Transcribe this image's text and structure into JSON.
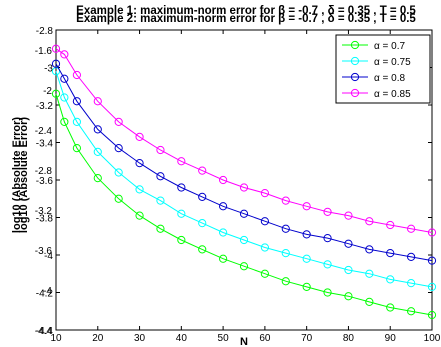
{
  "chart_data": {
    "type": "line",
    "title_a": "Example 1: maximum-norm error for β = -0.7 , δ = 0.35 , T = 0.5",
    "title_b": "Example 2: maximum-norm error for β = -0.7 , δ = 0.35 , T = 0.5",
    "xlabel": "N",
    "ylabel_a": "log10 (Absolute Error)",
    "ylabel_b": "log10 (Absolute Error)",
    "xlim": [
      10,
      100
    ],
    "ylim": [
      -4.4,
      -2.8
    ],
    "ylim_b": [
      -4.4,
      -1.4
    ],
    "xticks": [
      10,
      20,
      30,
      40,
      50,
      60,
      70,
      80,
      90,
      100
    ],
    "xtick_labels": [
      "10",
      "20",
      "30",
      "40",
      "50",
      "60",
      "70",
      "80",
      "90",
      "100"
    ],
    "yticks_a": [
      -4.4,
      -4.2,
      -4,
      -3.8,
      -3.6,
      -3.4,
      -3.2,
      -3,
      -2.8
    ],
    "ytick_labels_a": [
      "-4.4",
      "-4.2",
      "-4",
      "-3.8",
      "-3.6",
      "-3.4",
      "-3.2",
      "-3",
      "-2.8"
    ],
    "yticks_b": [
      -4.4,
      -4,
      -3.6,
      -3.2,
      -2.8,
      -2.4,
      -2,
      -1.6
    ],
    "ytick_labels_b": [
      "-4.4",
      "-4",
      "-3.6",
      "-3.2",
      "-2.8",
      "-2.4",
      "-2",
      "-1.6"
    ],
    "x": [
      10,
      12,
      15,
      20,
      25,
      30,
      35,
      40,
      45,
      50,
      55,
      60,
      65,
      70,
      75,
      80,
      85,
      90,
      95,
      100
    ],
    "series": [
      {
        "name": "α = 0.7",
        "color": "#00ff00",
        "values": [
          -3.14,
          -3.29,
          -3.43,
          -3.59,
          -3.7,
          -3.79,
          -3.86,
          -3.92,
          -3.97,
          -4.02,
          -4.06,
          -4.1,
          -4.14,
          -4.17,
          -4.2,
          -4.22,
          -4.25,
          -4.28,
          -4.3,
          -4.32
        ]
      },
      {
        "name": "α = 0.75",
        "color": "#00ffff",
        "values": [
          -3.02,
          -3.16,
          -3.29,
          -3.45,
          -3.56,
          -3.65,
          -3.71,
          -3.78,
          -3.83,
          -3.88,
          -3.92,
          -3.96,
          -3.99,
          -4.02,
          -4.05,
          -4.08,
          -4.1,
          -4.13,
          -4.15,
          -4.17
        ]
      },
      {
        "name": "α = 0.8",
        "color": "#0000cc",
        "values": [
          -2.98,
          -3.06,
          -3.18,
          -3.33,
          -3.43,
          -3.51,
          -3.58,
          -3.64,
          -3.69,
          -3.74,
          -3.78,
          -3.82,
          -3.86,
          -3.89,
          -3.91,
          -3.94,
          -3.97,
          -3.99,
          -4.01,
          -4.03
        ]
      },
      {
        "name": "α = 0.85",
        "color": "#ff00ff",
        "values": [
          -2.9,
          -2.93,
          -3.04,
          -3.18,
          -3.29,
          -3.37,
          -3.44,
          -3.5,
          -3.55,
          -3.6,
          -3.64,
          -3.67,
          -3.71,
          -3.74,
          -3.77,
          -3.79,
          -3.82,
          -3.84,
          -3.86,
          -3.88
        ]
      }
    ],
    "legend_position": "top-right",
    "grid": false
  }
}
